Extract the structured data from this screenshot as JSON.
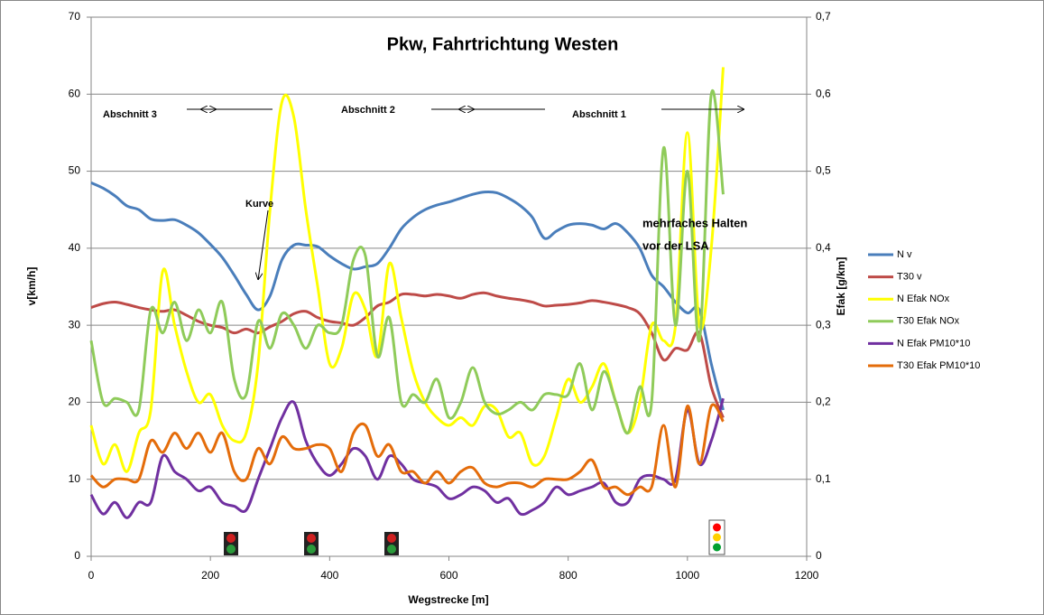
{
  "chart_data": {
    "type": "line",
    "title": "Pkw, Fahrtrichtung Westen",
    "xlabel": "Wegstrecke  [m]",
    "ylabel": "v[km/h]",
    "y2label": "Efak [g/km]",
    "annotations": [
      "Abschnitt 3",
      "Abschnitt 2",
      "Abschnitt 1",
      "Kurve",
      "mehrfaches Halten",
      "vor der LSA"
    ],
    "xlim": [
      0,
      1200
    ],
    "xticks": [
      0,
      200,
      400,
      600,
      800,
      1000,
      1200
    ],
    "ylim": [
      0,
      70
    ],
    "yticks": [
      0,
      10,
      20,
      30,
      40,
      50,
      60,
      70
    ],
    "y2lim": [
      0,
      0.7
    ],
    "y2ticks": [
      0,
      {
        "value": 0.1,
        "label": "0,1"
      },
      {
        "value": 0.2,
        "label": "0,2"
      },
      {
        "value": 0.3,
        "label": "0,3"
      },
      {
        "value": 0.4,
        "label": "0,4"
      },
      {
        "value": 0.5,
        "label": "0,5"
      },
      {
        "value": 0.6,
        "label": "0,6"
      },
      {
        "value": 0.7,
        "label": "0,7"
      }
    ],
    "grid": true,
    "legend": "right",
    "x": [
      0,
      20,
      40,
      60,
      80,
      100,
      120,
      140,
      160,
      180,
      200,
      220,
      240,
      260,
      280,
      300,
      320,
      340,
      360,
      380,
      400,
      420,
      440,
      460,
      480,
      500,
      520,
      540,
      560,
      580,
      600,
      620,
      640,
      660,
      680,
      700,
      720,
      740,
      760,
      780,
      800,
      820,
      840,
      860,
      880,
      900,
      920,
      940,
      960,
      980,
      1000,
      1020,
      1040,
      1060
    ],
    "series": [
      {
        "name": "N v",
        "color": "#4a7ebb",
        "values": [
          48.5,
          47.8,
          46.8,
          45.5,
          45,
          43.8,
          43.6,
          43.7,
          43,
          42,
          40.5,
          38.8,
          36.5,
          34,
          32,
          33.8,
          38.5,
          40.4,
          40.4,
          40.2,
          39,
          38,
          37.3,
          37.6,
          38,
          40,
          42.5,
          44,
          45,
          45.6,
          46,
          46.5,
          47,
          47.3,
          47.2,
          46.5,
          45.5,
          44,
          41.3,
          42.2,
          43,
          43.2,
          43,
          42.5,
          43.2,
          42,
          40,
          36.5,
          35,
          33,
          31.6,
          32,
          25,
          19
        ]
      },
      {
        "name": "T30 v",
        "color": "#be4b48",
        "values": [
          32.3,
          32.8,
          33,
          32.7,
          32.3,
          32,
          31.8,
          32,
          31.3,
          30.5,
          30,
          29.7,
          29,
          29.5,
          29,
          29.8,
          30.5,
          31.5,
          31.8,
          31,
          30.5,
          30.3,
          30,
          31,
          32.5,
          33,
          34,
          34,
          33.8,
          34,
          33.8,
          33.5,
          34,
          34.2,
          33.8,
          33.5,
          33.3,
          33,
          32.5,
          32.6,
          32.7,
          32.9,
          33.2,
          33,
          32.7,
          32.3,
          31.5,
          29,
          25.5,
          27,
          26.8,
          29,
          22,
          18
        ]
      },
      {
        "name": "N Efak NOx",
        "color": "#ffff00",
        "axis": "y2",
        "values": [
          0.17,
          0.12,
          0.145,
          0.11,
          0.16,
          0.19,
          0.37,
          0.3,
          0.24,
          0.2,
          0.21,
          0.17,
          0.15,
          0.16,
          0.25,
          0.45,
          0.59,
          0.57,
          0.45,
          0.35,
          0.25,
          0.27,
          0.34,
          0.32,
          0.26,
          0.38,
          0.31,
          0.24,
          0.2,
          0.18,
          0.17,
          0.18,
          0.17,
          0.195,
          0.19,
          0.155,
          0.16,
          0.12,
          0.13,
          0.18,
          0.23,
          0.2,
          0.22,
          0.25,
          0.2,
          0.16,
          0.2,
          0.3,
          0.28,
          0.3,
          0.55,
          0.3,
          0.4,
          0.635
        ]
      },
      {
        "name": "T30  Efak NOx",
        "color": "#8fcb5a",
        "axis": "y2",
        "values": [
          0.28,
          0.2,
          0.205,
          0.2,
          0.19,
          0.32,
          0.29,
          0.33,
          0.28,
          0.32,
          0.29,
          0.33,
          0.23,
          0.21,
          0.305,
          0.27,
          0.315,
          0.3,
          0.27,
          0.3,
          0.29,
          0.3,
          0.385,
          0.39,
          0.26,
          0.31,
          0.2,
          0.21,
          0.2,
          0.23,
          0.18,
          0.2,
          0.245,
          0.2,
          0.185,
          0.19,
          0.2,
          0.19,
          0.21,
          0.21,
          0.21,
          0.25,
          0.19,
          0.24,
          0.2,
          0.16,
          0.22,
          0.2,
          0.53,
          0.3,
          0.5,
          0.28,
          0.6,
          0.47
        ]
      },
      {
        "name": "N Efak PM10*10",
        "color": "#7030a0",
        "axis": "y2",
        "values": [
          0.08,
          0.055,
          0.07,
          0.05,
          0.07,
          0.07,
          0.13,
          0.11,
          0.1,
          0.085,
          0.09,
          0.07,
          0.065,
          0.06,
          0.1,
          0.14,
          0.18,
          0.2,
          0.15,
          0.12,
          0.105,
          0.12,
          0.14,
          0.13,
          0.1,
          0.13,
          0.12,
          0.1,
          0.095,
          0.09,
          0.075,
          0.08,
          0.09,
          0.085,
          0.07,
          0.075,
          0.055,
          0.06,
          0.07,
          0.09,
          0.08,
          0.085,
          0.09,
          0.095,
          0.07,
          0.07,
          0.1,
          0.105,
          0.1,
          0.1,
          0.19,
          0.12,
          0.15,
          0.205
        ]
      },
      {
        "name": "T30  Efak PM10*10",
        "color": "#e46c0a",
        "axis": "y2",
        "values": [
          0.105,
          0.09,
          0.1,
          0.1,
          0.1,
          0.15,
          0.135,
          0.16,
          0.14,
          0.16,
          0.135,
          0.16,
          0.11,
          0.1,
          0.14,
          0.12,
          0.155,
          0.14,
          0.14,
          0.145,
          0.14,
          0.11,
          0.16,
          0.17,
          0.13,
          0.145,
          0.11,
          0.11,
          0.095,
          0.11,
          0.095,
          0.11,
          0.115,
          0.095,
          0.09,
          0.095,
          0.095,
          0.09,
          0.1,
          0.1,
          0.1,
          0.11,
          0.125,
          0.09,
          0.09,
          0.08,
          0.09,
          0.09,
          0.17,
          0.09,
          0.195,
          0.12,
          0.195,
          0.175
        ]
      }
    ]
  }
}
